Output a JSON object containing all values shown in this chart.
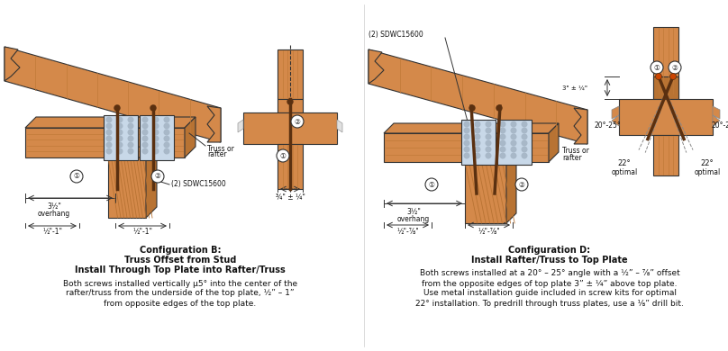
{
  "bg_color": "#ffffff",
  "wood_color": "#D4894A",
  "wood_dark": "#B87333",
  "wood_grain": "#C07A38",
  "wood_grain2": "#BA7230",
  "metal_color": "#C8D8E8",
  "metal_hole": "#A8B8C8",
  "screw_color": "#5A3010",
  "line_color": "#333333",
  "dim_color": "#333333",
  "config_b_title1": "Configuration B:",
  "config_b_title2": "Truss Offset from Stud",
  "config_b_title3": "Install Through Top Plate into Rafter/Truss",
  "config_b_body1": "Both screws installed vertically µ5° into the center of the",
  "config_b_body2": "rafter/truss from the underside of the top plate, ½” – 1”",
  "config_b_body3": "from opposite edges of the top plate.",
  "config_d_title1": "Configuration D:",
  "config_d_title2": "Install Rafter/Truss to Top Plate",
  "config_d_body1": "Both screws installed at a 20° – 25° angle with a ½” – ⅞” offset",
  "config_d_body2": "from the opposite edges of top plate 3” ± ¼” above top plate.",
  "config_d_body3": "Use metal installation guide included in screw kits for optimal",
  "config_d_body4": "22° installation. To predrill through truss plates, use a ⅛” drill bit."
}
